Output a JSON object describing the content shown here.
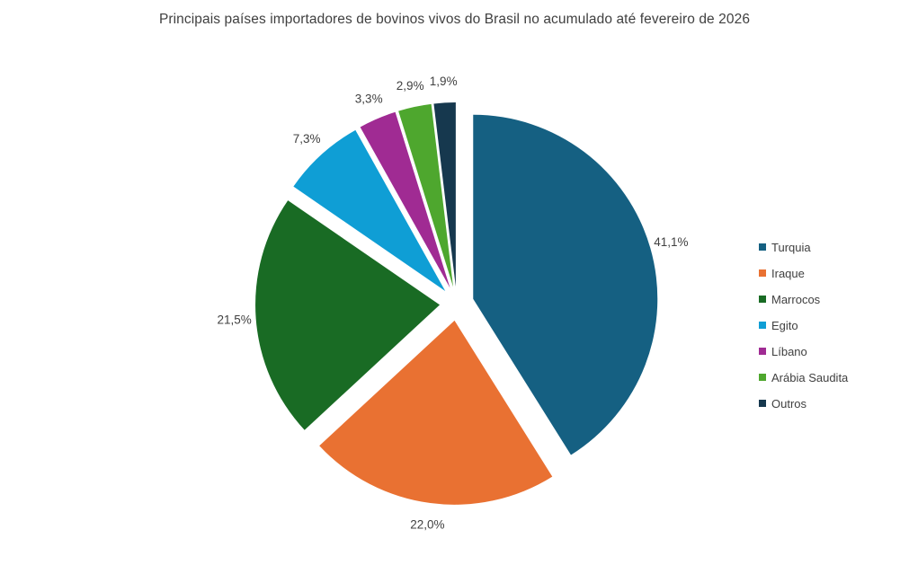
{
  "title": "Principais países importadores de bovinos vivos do Brasil no acumulado até fevereiro de 2026",
  "chart_data": {
    "type": "pie",
    "title": "Principais países importadores de bovinos vivos do Brasil no acumulado até fevereiro de 2026",
    "categories": [
      "Turquia",
      "Iraque",
      "Marrocos",
      "Egito",
      "Líbano",
      "Arábia Saudita",
      "Outros"
    ],
    "values": [
      41.1,
      22.0,
      21.5,
      7.3,
      3.3,
      2.9,
      1.9
    ],
    "colors": [
      "#156082",
      "#E97132",
      "#196B24",
      "#0F9ED5",
      "#A02B93",
      "#4EA72E",
      "#16384E"
    ],
    "data_labels": [
      "41,1%",
      "22,0%",
      "21,5%",
      "7,3%",
      "3,3%",
      "2,9%",
      "1,9%"
    ],
    "label_format": "percent with comma decimal",
    "legend_position": "right",
    "start_angle_deg": 0,
    "direction": "clockwise",
    "exploded": true
  },
  "style": {
    "background": "#FFFFFF",
    "text_color": "#404040"
  }
}
